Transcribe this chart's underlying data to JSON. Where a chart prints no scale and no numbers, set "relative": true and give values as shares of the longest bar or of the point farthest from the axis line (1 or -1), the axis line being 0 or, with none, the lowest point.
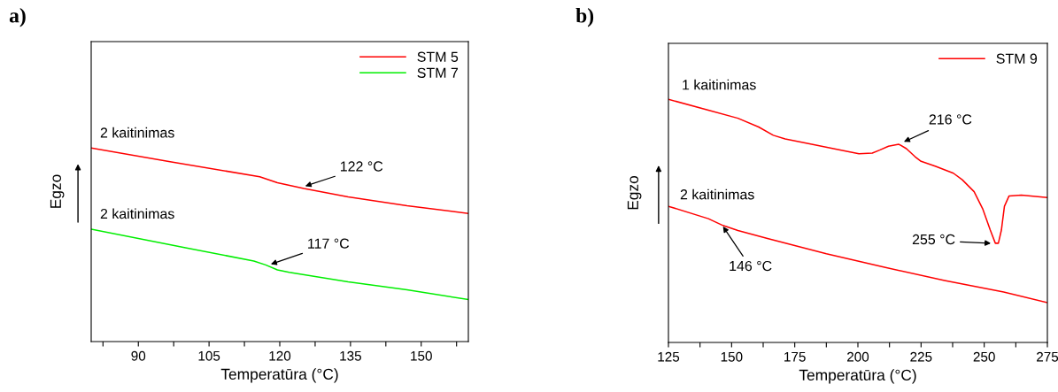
{
  "chart_data": [
    {
      "type": "line",
      "title": "a)",
      "xlabel": "Temperatūra (°C)",
      "ylabel": "Egzo",
      "relative": true,
      "legend": "top right",
      "tick_labels": "x",
      "xlim": [
        80,
        160
      ],
      "xticks": [
        {
          "value": 82.5,
          "label": null
        },
        90,
        {
          "value": 97.5,
          "label": null
        },
        105,
        {
          "value": 112.5,
          "label": null
        },
        120,
        {
          "value": 127.5,
          "label": null
        },
        135,
        {
          "value": 142.5,
          "label": null
        },
        150,
        {
          "value": 157.5,
          "label": null
        }
      ],
      "series": [
        {
          "name": "STM 5",
          "color": "#ff0000",
          "x": [
            80,
            97,
            115.75,
            119.5,
            125.1,
            134.5,
            147,
            160
          ],
          "values": [
            1.0,
            0.928,
            0.852,
            0.821,
            0.791,
            0.748,
            0.702,
            0.662
          ]
        },
        {
          "name": "STM 7",
          "color": "#00ee00",
          "x": [
            80,
            100,
            114.5,
            117,
            119.5,
            122,
            134.5,
            147,
            160
          ],
          "values": [
            0.581,
            0.485,
            0.416,
            0.396,
            0.37,
            0.358,
            0.309,
            0.268,
            0.217
          ]
        }
      ],
      "annotations": [
        {
          "text": "2 kaitinimas",
          "x": 80,
          "y": 1.0
        },
        {
          "text": "2 kaitinimas",
          "x": 80,
          "y": 0.581
        },
        {
          "text": "122 °C",
          "x": 125.4,
          "y": 0.803
        },
        {
          "text": "117 °C",
          "x": 118.1,
          "y": 0.4
        }
      ]
    },
    {
      "type": "line",
      "title": "b)",
      "xlabel": "Temperatūra (°C)",
      "ylabel": "Egzo",
      "relative": true,
      "legend": "top right",
      "tick_labels": "x",
      "xlim": [
        125,
        275
      ],
      "xticks": [
        125,
        {
          "value": 137.5,
          "label": null
        },
        150,
        {
          "value": 162.5,
          "label": null
        },
        175,
        {
          "value": 187.5,
          "label": null
        },
        200,
        {
          "value": 212.5,
          "label": null
        },
        225,
        {
          "value": 237.5,
          "label": null
        },
        250,
        {
          "value": 262.5,
          "label": null
        },
        275
      ],
      "series": [
        {
          "name": "STM 9",
          "color": "#ff0000",
          "x": [
            125,
            140.8,
            152.5,
            160.7,
            166.5,
            171.2,
            181.7,
            193.4,
            200.4,
            205.7,
            208.6,
            212.1,
            216.2,
            219.2,
            222.6,
            225,
            230.8,
            237.8,
            241.3,
            246,
            249.5,
            252.4,
            254.4,
            255.6,
            256.8,
            258,
            259.8,
            264.7,
            275
          ],
          "values": [
            1.0,
            0.955,
            0.922,
            0.886,
            0.852,
            0.837,
            0.815,
            0.791,
            0.776,
            0.779,
            0.791,
            0.807,
            0.815,
            0.797,
            0.764,
            0.745,
            0.724,
            0.696,
            0.669,
            0.62,
            0.547,
            0.462,
            0.408,
            0.408,
            0.462,
            0.56,
            0.602,
            0.606,
            0.596
          ]
        },
        {
          "color": "#ff0000",
          "x": [
            125,
            140.8,
            146.6,
            152.5,
            164.2,
            187.5,
            210.9,
            234.3,
            257.7,
            275
          ],
          "values": [
            0.56,
            0.509,
            0.481,
            0.46,
            0.428,
            0.365,
            0.308,
            0.255,
            0.207,
            0.164
          ]
        }
      ],
      "annotations": [
        {
          "text": "1 kaitinimas",
          "x": 125,
          "y": 1.0
        },
        {
          "text": "2 kaitinimas",
          "x": 125,
          "y": 0.56
        },
        {
          "text": "216 °C",
          "x": 218.2,
          "y": 0.825
        },
        {
          "text": "255 °C",
          "x": 252.6,
          "y": 0.408
        },
        {
          "text": "146 °C",
          "x": 146.6,
          "y": 0.477
        }
      ]
    }
  ]
}
